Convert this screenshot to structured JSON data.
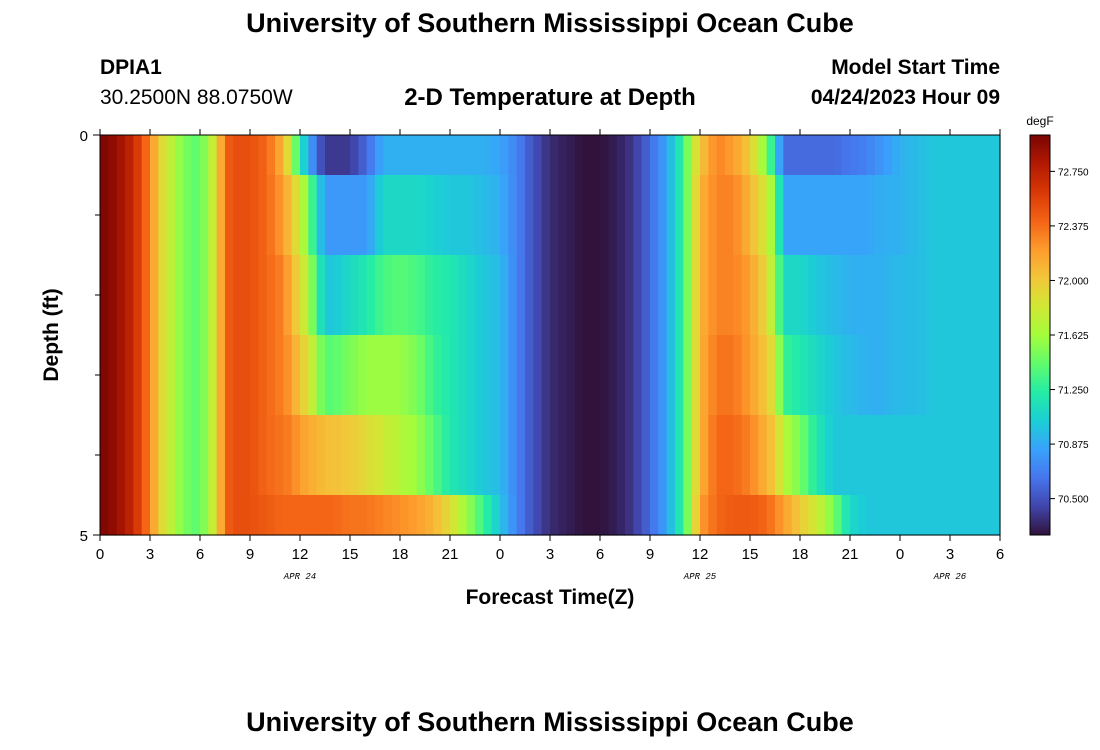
{
  "header": {
    "title": "University of Southern Mississippi Ocean Cube",
    "station": "DPIA1",
    "coordinates": "30.2500N  88.0750W",
    "subtitle": "2-D Temperature at Depth",
    "model_start_label": "Model Start Time",
    "model_start_time": "04/24/2023 Hour 09",
    "footer_title": "University of Southern Mississippi Ocean Cube"
  },
  "chart_data": {
    "type": "heatmap",
    "title": "2-D Temperature at Depth",
    "xlabel": "Forecast Time(Z)",
    "ylabel": "Depth (ft)",
    "x_tick_labels": [
      "0",
      "3",
      "6",
      "9",
      "12",
      "15",
      "18",
      "21",
      "0",
      "3",
      "6",
      "9",
      "12",
      "15",
      "18",
      "21",
      "0",
      "3",
      "6"
    ],
    "x_hours": [
      0,
      3,
      6,
      9,
      12,
      15,
      18,
      21,
      24,
      27,
      30,
      33,
      36,
      39,
      42,
      45,
      48,
      51,
      54
    ],
    "x_range_hours": [
      0,
      54
    ],
    "day_labels": [
      {
        "label": "APR 24",
        "hour": 12
      },
      {
        "label": "APR 25",
        "hour": 36
      },
      {
        "label": "APR 26",
        "hour": 51
      }
    ],
    "y_tick_labels": [
      "0",
      "5"
    ],
    "y_range": [
      0,
      5
    ],
    "y_minor_ticks": [
      1,
      2,
      3,
      4
    ],
    "depth_layers": [
      "0-0.5 ft",
      "0.5-1.5 ft",
      "1.5-2.5 ft",
      "2.5-3.5 ft",
      "3.5-4.5 ft",
      "4.5-5 ft"
    ],
    "colorbar": {
      "unit": "degF",
      "min": 70.25,
      "max": 73.0,
      "tick_labels": [
        "72.750",
        "72.375",
        "72.000",
        "71.625",
        "71.250",
        "70.875",
        "70.500"
      ],
      "tick_values": [
        72.75,
        72.375,
        72.0,
        71.625,
        71.25,
        70.875,
        70.5
      ],
      "colors": [
        "#30123b",
        "#4145ab",
        "#4675ed",
        "#39a2fc",
        "#1bcfd4",
        "#24eca6",
        "#61fc6c",
        "#a4fc3b",
        "#d1e834",
        "#f3c63a",
        "#fe9b2d",
        "#f36315",
        "#d93806",
        "#b11901",
        "#7a0403"
      ]
    },
    "time_profiles": {
      "note": "temperature (degF) per depth layer at each forecast hour, interpolated linearly",
      "hours": [
        0,
        1,
        2,
        3,
        3.5,
        4,
        5,
        6,
        7,
        7.5,
        8,
        9,
        10,
        11,
        11.5,
        12,
        12.5,
        13,
        13.5,
        14,
        15,
        16,
        17,
        18,
        19,
        20,
        21,
        22,
        23,
        24,
        25,
        26,
        27,
        28,
        29,
        30,
        31,
        32,
        33,
        34,
        35,
        35.5,
        36,
        37,
        38,
        39,
        40,
        40.5,
        41,
        42,
        43,
        44,
        45,
        46,
        47,
        48,
        49,
        50,
        51,
        52,
        53,
        54
      ],
      "layers": [
        [
          73.0,
          72.9,
          72.7,
          72.3,
          72.0,
          71.8,
          71.5,
          71.4,
          71.9,
          72.4,
          72.5,
          72.5,
          72.4,
          72.1,
          71.7,
          71.2,
          70.9,
          70.6,
          70.4,
          70.4,
          70.4,
          70.6,
          70.9,
          70.9,
          70.9,
          70.9,
          70.9,
          70.9,
          70.9,
          70.85,
          70.7,
          70.5,
          70.35,
          70.3,
          70.25,
          70.25,
          70.3,
          70.4,
          70.6,
          70.85,
          71.3,
          71.7,
          72.0,
          72.3,
          72.2,
          72.0,
          71.5,
          71.1,
          70.6,
          70.6,
          70.6,
          70.6,
          70.65,
          70.7,
          70.8,
          70.9,
          70.95,
          71.0,
          71.0,
          71.0,
          71.0,
          71.0
        ],
        [
          73.0,
          72.9,
          72.7,
          72.3,
          72.0,
          71.8,
          71.5,
          71.4,
          71.9,
          72.4,
          72.5,
          72.5,
          72.4,
          72.2,
          72.0,
          71.8,
          71.5,
          71.1,
          70.8,
          70.8,
          70.8,
          70.8,
          71.1,
          71.1,
          71.1,
          71.05,
          71.0,
          71.0,
          70.95,
          70.9,
          70.7,
          70.5,
          70.35,
          70.3,
          70.25,
          70.25,
          70.3,
          70.4,
          70.6,
          70.85,
          71.3,
          71.7,
          72.1,
          72.3,
          72.3,
          72.1,
          71.8,
          71.5,
          70.85,
          70.85,
          70.85,
          70.85,
          70.85,
          70.85,
          70.9,
          70.9,
          70.95,
          71.0,
          71.0,
          71.0,
          71.0,
          71.0
        ],
        [
          73.0,
          72.9,
          72.7,
          72.3,
          72.0,
          71.8,
          71.5,
          71.4,
          71.9,
          72.4,
          72.5,
          72.5,
          72.4,
          72.3,
          72.1,
          71.9,
          71.7,
          71.3,
          71.0,
          71.0,
          71.1,
          71.2,
          71.35,
          71.4,
          71.35,
          71.25,
          71.2,
          71.1,
          71.0,
          70.95,
          70.7,
          70.5,
          70.35,
          70.3,
          70.25,
          70.25,
          70.3,
          70.4,
          70.6,
          70.85,
          71.3,
          71.7,
          72.1,
          72.3,
          72.3,
          72.2,
          71.9,
          71.6,
          71.1,
          71.1,
          71.0,
          70.95,
          70.9,
          70.9,
          70.9,
          70.95,
          70.95,
          71.0,
          71.0,
          71.0,
          71.0,
          71.0
        ],
        [
          73.0,
          72.9,
          72.7,
          72.3,
          72.0,
          71.8,
          71.5,
          71.4,
          71.9,
          72.4,
          72.5,
          72.5,
          72.4,
          72.3,
          72.2,
          72.0,
          71.9,
          71.6,
          71.4,
          71.4,
          71.5,
          71.6,
          71.6,
          71.6,
          71.5,
          71.3,
          71.2,
          71.1,
          71.0,
          70.95,
          70.7,
          70.5,
          70.35,
          70.3,
          70.25,
          70.25,
          70.3,
          70.4,
          70.6,
          70.85,
          71.3,
          71.7,
          72.1,
          72.35,
          72.35,
          72.2,
          72.0,
          71.8,
          71.3,
          71.2,
          71.1,
          71.0,
          70.95,
          70.9,
          70.9,
          70.95,
          70.95,
          71.0,
          71.0,
          71.0,
          71.0,
          71.0
        ],
        [
          73.0,
          72.9,
          72.7,
          72.3,
          72.0,
          71.8,
          71.5,
          71.4,
          71.9,
          72.4,
          72.5,
          72.5,
          72.4,
          72.35,
          72.3,
          72.2,
          72.15,
          72.1,
          72.05,
          72.05,
          72.0,
          71.9,
          71.8,
          71.7,
          71.6,
          71.4,
          71.2,
          71.1,
          71.0,
          70.95,
          70.7,
          70.5,
          70.35,
          70.3,
          70.25,
          70.25,
          70.3,
          70.4,
          70.6,
          70.85,
          71.3,
          71.7,
          72.1,
          72.4,
          72.4,
          72.3,
          72.1,
          72.0,
          71.7,
          71.5,
          71.2,
          71.0,
          71.0,
          71.0,
          71.0,
          71.0,
          71.0,
          71.0,
          71.0,
          71.0,
          71.0,
          71.0
        ],
        [
          73.0,
          72.9,
          72.7,
          72.3,
          72.0,
          71.8,
          71.5,
          71.4,
          71.9,
          72.4,
          72.5,
          72.5,
          72.45,
          72.4,
          72.4,
          72.4,
          72.4,
          72.4,
          72.4,
          72.4,
          72.35,
          72.35,
          72.3,
          72.25,
          72.2,
          72.1,
          71.9,
          71.6,
          71.3,
          71.0,
          70.7,
          70.5,
          70.35,
          70.3,
          70.25,
          70.25,
          70.3,
          70.4,
          70.6,
          70.85,
          71.3,
          71.7,
          72.2,
          72.4,
          72.45,
          72.45,
          72.4,
          72.3,
          72.2,
          72.0,
          71.8,
          71.5,
          71.1,
          71.0,
          71.0,
          71.0,
          71.0,
          71.0,
          71.0,
          71.0,
          71.0,
          71.0
        ]
      ]
    }
  }
}
